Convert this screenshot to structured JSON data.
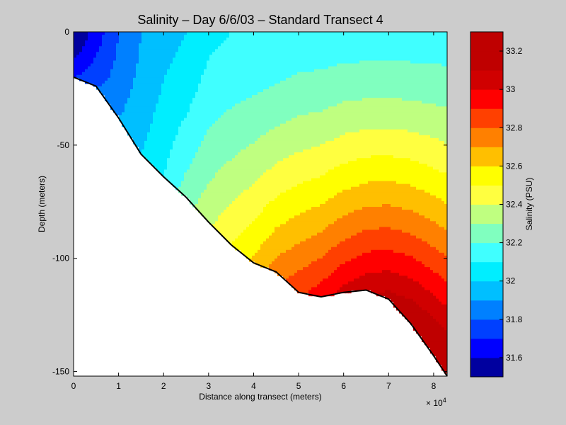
{
  "chart_data": {
    "type": "heatmap",
    "subtype": "filled-contour",
    "title": "Salinity – Day 6/6/03 – Standard Transect 4",
    "xlabel": "Distance along transect (meters)",
    "ylabel": "Depth (meters)",
    "x_exponent_label": "× 10",
    "x_exponent_power": "4",
    "xlim": [
      0,
      83000
    ],
    "ylim": [
      -152,
      0
    ],
    "x_ticks": [
      0,
      10000,
      20000,
      30000,
      40000,
      50000,
      60000,
      70000,
      80000
    ],
    "x_tick_labels": [
      "0",
      "1",
      "2",
      "3",
      "4",
      "5",
      "6",
      "7",
      "8"
    ],
    "y_ticks": [
      0,
      -50,
      -100,
      -150
    ],
    "y_tick_labels": [
      "0",
      "-50",
      "-100",
      "-150"
    ],
    "colorbar": {
      "label": "Salinity (PSU)",
      "levels": [
        31.5,
        31.6,
        31.7,
        31.8,
        31.9,
        32.0,
        32.1,
        32.2,
        32.3,
        32.4,
        32.5,
        32.6,
        32.7,
        32.8,
        32.9,
        33.0,
        33.1,
        33.2,
        33.3
      ],
      "colors": [
        "#00009F",
        "#0000FF",
        "#0040FF",
        "#0080FF",
        "#00BFFF",
        "#00EEFF",
        "#40FFFF",
        "#80FFBF",
        "#BFFF80",
        "#FFFF40",
        "#FFFF00",
        "#FFBF00",
        "#FF8000",
        "#FF4000",
        "#FF0000",
        "#D00000",
        "#BF0000",
        "#BF0000"
      ],
      "tick_values": [
        31.6,
        31.8,
        32.0,
        32.2,
        32.4,
        32.6,
        32.8,
        33.0,
        33.2
      ],
      "tick_labels": [
        "31.6",
        "31.8",
        "32",
        "32.2",
        "32.4",
        "32.6",
        "32.8",
        "33",
        "33.2"
      ]
    },
    "bottom_profile": {
      "x": [
        0,
        5000,
        10000,
        15000,
        20000,
        25000,
        30000,
        35000,
        40000,
        45000,
        50000,
        55000,
        60000,
        65000,
        70000,
        75000,
        80000,
        83000
      ],
      "depth": [
        -20,
        -24,
        -38,
        -54,
        -64,
        -73,
        -84,
        -94,
        -102,
        -106,
        -115,
        -117,
        -115,
        -114,
        -118,
        -129,
        -143,
        -152
      ]
    },
    "salinity_field": {
      "x": [
        0,
        5000,
        10000,
        15000,
        20000,
        25000,
        30000,
        35000,
        40000,
        45000,
        50000,
        55000,
        60000,
        65000,
        70000,
        75000,
        80000,
        83000
      ],
      "depth": [
        0,
        -10,
        -20,
        -30,
        -40,
        -50,
        -60,
        -70,
        -80,
        -90,
        -100,
        -110,
        -120,
        -130,
        -140,
        -150
      ],
      "surface": [
        31.5,
        31.65,
        31.8,
        31.9,
        31.97,
        32.0,
        32.08,
        32.1,
        32.11,
        32.12,
        32.14,
        32.14,
        32.15,
        32.15,
        32.15,
        32.15,
        32.15,
        32.15
      ],
      "deep": [
        31.7,
        31.8,
        31.9,
        32.0,
        32.1,
        32.25,
        32.38,
        32.5,
        32.62,
        32.75,
        32.88,
        32.96,
        33.03,
        33.08,
        33.14,
        33.22,
        33.28,
        33.3
      ]
    }
  }
}
